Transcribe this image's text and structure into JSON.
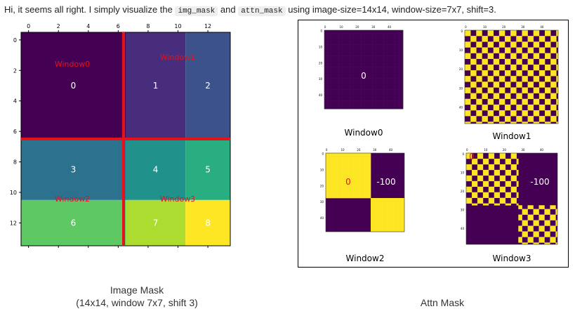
{
  "caption": {
    "pre": "Hi, it seems all right. I simply visualize the ",
    "code1": "img_mask",
    "mid": " and ",
    "code2": "attn_mask",
    "post": " using image-size=14x14, window-size=7x7, shift=3."
  },
  "image_mask": {
    "x_ticks": [
      "0",
      "2",
      "4",
      "6",
      "8",
      "10",
      "12"
    ],
    "y_ticks": [
      "0",
      "2",
      "4",
      "6",
      "8",
      "10",
      "12"
    ],
    "regions": [
      {
        "label": "0",
        "color": "#440154"
      },
      {
        "label": "1",
        "color": "#472d7b"
      },
      {
        "label": "2",
        "color": "#3b528b"
      },
      {
        "label": "3",
        "color": "#2c728e"
      },
      {
        "label": "4",
        "color": "#21918c"
      },
      {
        "label": "5",
        "color": "#28ae80"
      },
      {
        "label": "6",
        "color": "#5ec962"
      },
      {
        "label": "7",
        "color": "#addc30"
      },
      {
        "label": "8",
        "color": "#fde725"
      }
    ],
    "window_labels": [
      "Window0",
      "Window1",
      "Window2",
      "Window3"
    ],
    "title_line1": "Image Mask",
    "title_line2": "(14x14, window 7x7, shift 3)"
  },
  "attn_mask": {
    "title": "Attn Mask",
    "ticks": [
      "0",
      "10",
      "20",
      "30",
      "40"
    ],
    "panels": [
      {
        "title": "Window0",
        "labels": [
          "0"
        ]
      },
      {
        "title": "Window1",
        "labels": []
      },
      {
        "title": "Window2",
        "labels": [
          "0",
          "-100"
        ]
      },
      {
        "title": "Window3",
        "labels": [
          "0",
          "-100"
        ]
      }
    ],
    "colors": {
      "purple": "#440154",
      "yellow": "#fde725"
    }
  }
}
